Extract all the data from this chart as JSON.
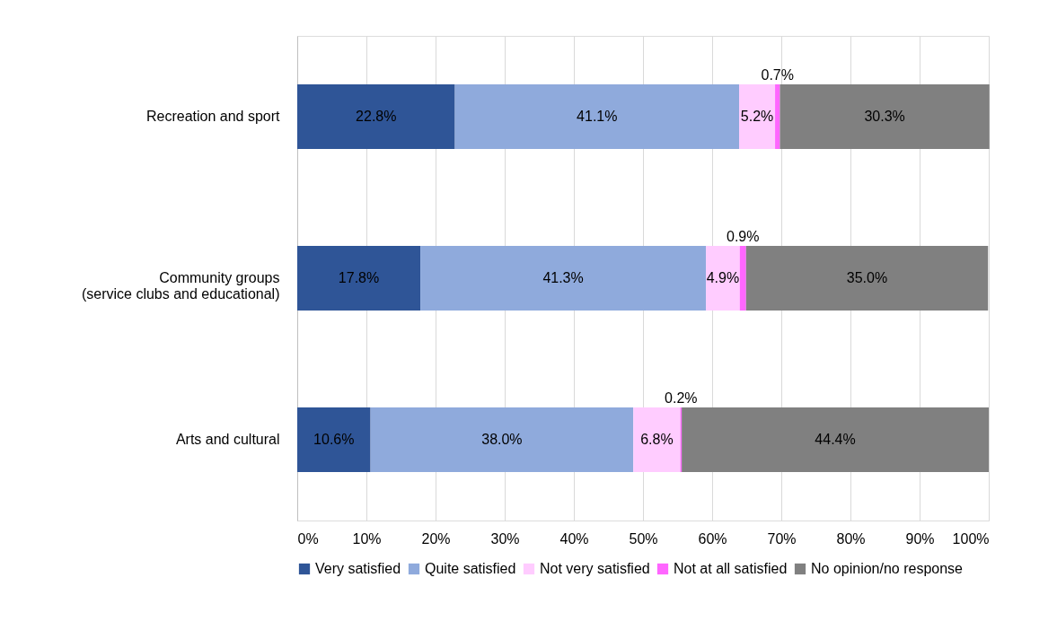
{
  "chart_data": {
    "type": "bar",
    "orientation": "horizontal",
    "stacked": true,
    "categories": [
      "Recreation and sport",
      "Community groups\n(service clubs and educational)",
      "Arts and cultural"
    ],
    "series": [
      {
        "name": "Very satisfied",
        "color": "#2f5597",
        "values": [
          22.8,
          17.8,
          10.6
        ],
        "value_labels": [
          "22.8%",
          "17.8%",
          "10.6%"
        ]
      },
      {
        "name": "Quite satisfied",
        "color": "#8faadc",
        "values": [
          41.1,
          41.3,
          38.0
        ],
        "value_labels": [
          "41.1%",
          "41.3%",
          "38.0%"
        ]
      },
      {
        "name": "Not very satisfied",
        "color": "#ffccff",
        "values": [
          5.2,
          4.9,
          6.8
        ],
        "value_labels": [
          "5.2%",
          "4.9%",
          "6.8%"
        ]
      },
      {
        "name": "Not at all satisfied",
        "color": "#ff66ff",
        "values": [
          0.7,
          0.9,
          0.2
        ],
        "value_labels": [
          "0.7%",
          "0.9%",
          "0.2%"
        ]
      },
      {
        "name": "No opinion/no response",
        "color": "#808080",
        "values": [
          30.3,
          35.0,
          44.4
        ],
        "value_labels": [
          "30.3%",
          "35.0%",
          "44.4%"
        ]
      }
    ],
    "xlim": [
      0,
      100
    ],
    "xticks": [
      {
        "value": 0,
        "label": "0%"
      },
      {
        "value": 10,
        "label": "10%"
      },
      {
        "value": 20,
        "label": "20%"
      },
      {
        "value": 30,
        "label": "30%"
      },
      {
        "value": 40,
        "label": "40%"
      },
      {
        "value": 50,
        "label": "50%"
      },
      {
        "value": 60,
        "label": "60%"
      },
      {
        "value": 70,
        "label": "70%"
      },
      {
        "value": 80,
        "label": "80%"
      },
      {
        "value": 90,
        "label": "90%"
      },
      {
        "value": 100,
        "label": "100%"
      }
    ],
    "grid": "x",
    "legend": "bottom"
  }
}
